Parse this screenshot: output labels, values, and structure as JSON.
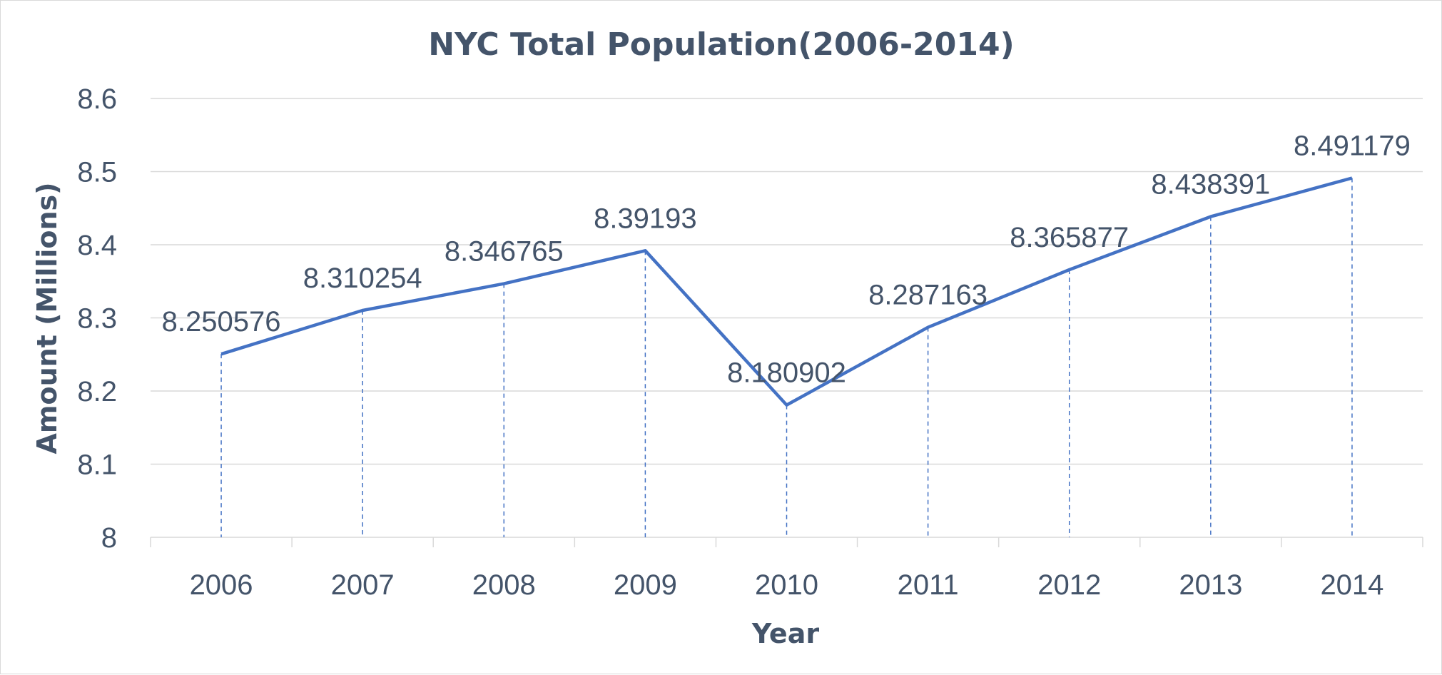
{
  "chart_data": {
    "type": "line",
    "title": "NYC Total Population(2006-2014)",
    "xlabel": "Year",
    "ylabel": "Amount (Millions)",
    "categories": [
      "2006",
      "2007",
      "2008",
      "2009",
      "2010",
      "2011",
      "2012",
      "2013",
      "2014"
    ],
    "series": [
      {
        "values": [
          8.250576,
          8.310254,
          8.346765,
          8.39193,
          8.180902,
          8.287163,
          8.365877,
          8.438391,
          8.491179
        ],
        "labels": [
          "8.250576",
          "8.310254",
          "8.346765",
          "8.39193",
          "8.180902",
          "8.287163",
          "8.365877",
          "8.438391",
          "8.491179"
        ],
        "color": "#4472c4"
      }
    ],
    "ylim": [
      8,
      8.6
    ],
    "yticks": [
      "8",
      "8.1",
      "8.2",
      "8.3",
      "8.4",
      "8.5",
      "8.6"
    ],
    "grid": true,
    "drop_lines": true,
    "legend": "none"
  }
}
